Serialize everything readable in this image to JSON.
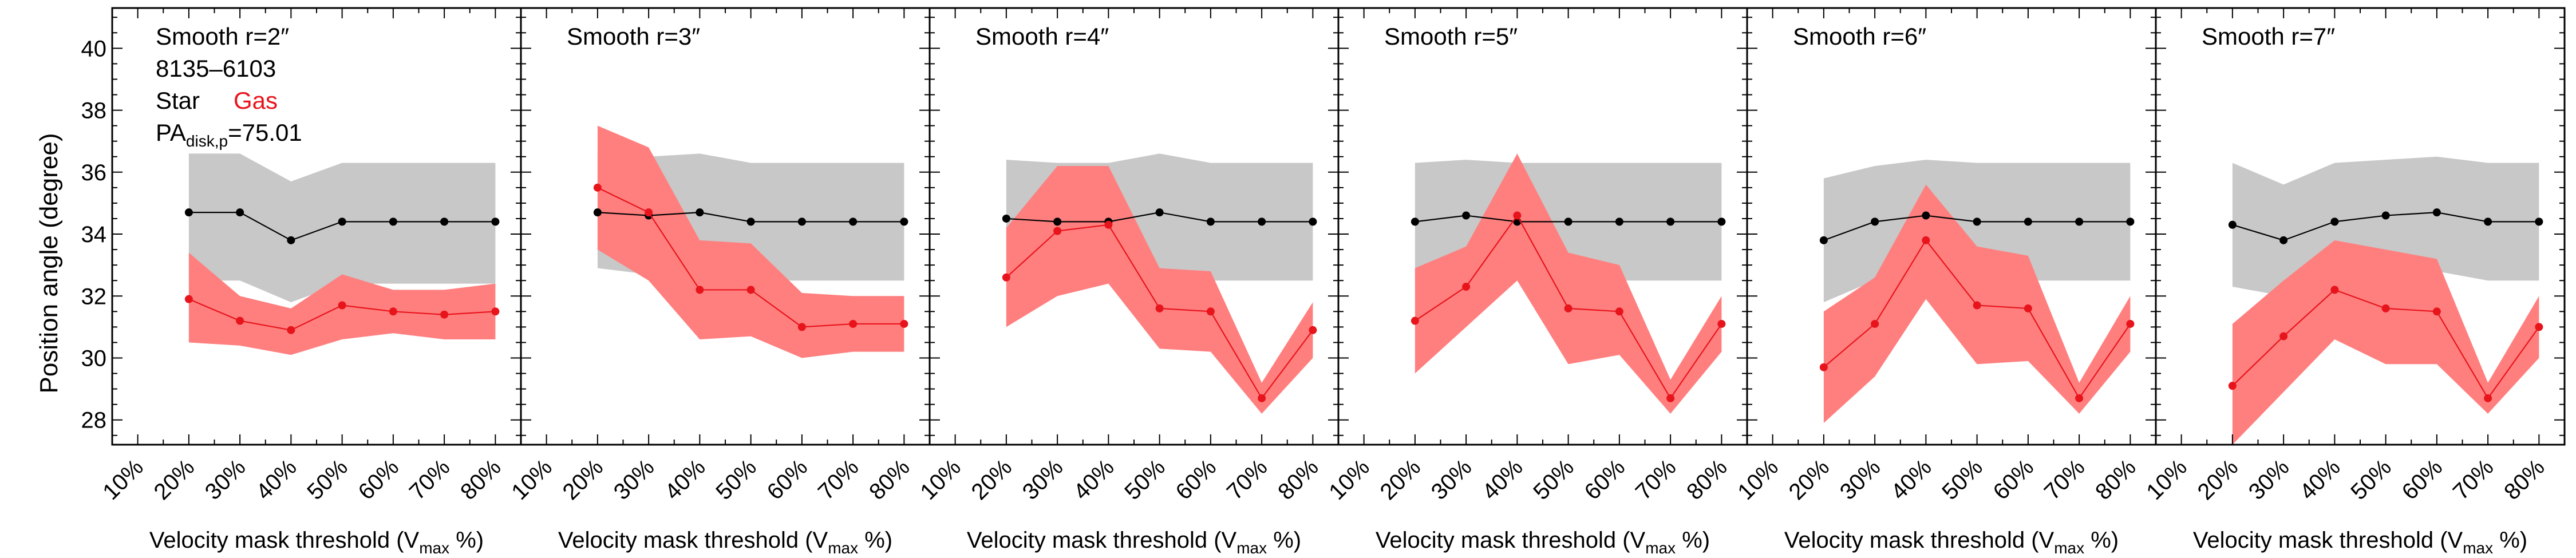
{
  "figure": {
    "ylabel": "Position angle (degree)",
    "xlabel_main": "Velocity mask threshold (V",
    "xlabel_sub": "max",
    "xlabel_end": " %)"
  },
  "info": {
    "galaxy_id": "8135–6103",
    "legend_star": "Star",
    "legend_gas": "Gas",
    "pa_prefix": "PA",
    "pa_sub": "disk,p",
    "pa_value": "=75.01"
  },
  "colors": {
    "star_line": "#000000",
    "star_band": "#c8c8c8",
    "gas_line": "#e8141c",
    "gas_band": "#ff7f7f",
    "gas_text": "#e8141c"
  },
  "chart_data": [
    {
      "type": "line",
      "title": "Smooth r=2″",
      "xlabel": "Velocity mask threshold (Vmax %)",
      "ylabel": "Position angle (degree)",
      "x_ticks": [
        "10%",
        "20%",
        "30%",
        "40%",
        "50%",
        "60%",
        "70%",
        "80%"
      ],
      "x": [
        20,
        30,
        40,
        50,
        60,
        70,
        80
      ],
      "xlim": [
        5,
        85
      ],
      "ylim": [
        27.2,
        41.3
      ],
      "y_ticks": [
        28,
        30,
        32,
        34,
        36,
        38,
        40
      ],
      "series": [
        {
          "name": "Star",
          "values": [
            34.7,
            34.7,
            33.8,
            34.4,
            34.4,
            34.4,
            34.4
          ],
          "upper": [
            36.6,
            36.6,
            35.7,
            36.3,
            36.3,
            36.3,
            36.3
          ],
          "lower": [
            32.5,
            32.5,
            31.8,
            32.4,
            32.4,
            32.4,
            32.4
          ]
        },
        {
          "name": "Gas",
          "values": [
            31.9,
            31.2,
            30.9,
            31.7,
            31.5,
            31.4,
            31.5
          ],
          "upper": [
            33.4,
            32.0,
            31.6,
            32.7,
            32.2,
            32.2,
            32.4
          ],
          "lower": [
            30.5,
            30.4,
            30.1,
            30.6,
            30.8,
            30.6,
            30.6
          ]
        }
      ]
    },
    {
      "type": "line",
      "title": "Smooth r=3″",
      "xlabel": "Velocity mask threshold (Vmax %)",
      "x_ticks": [
        "10%",
        "20%",
        "30%",
        "40%",
        "50%",
        "60%",
        "70%",
        "80%"
      ],
      "x": [
        20,
        30,
        40,
        50,
        60,
        70,
        80
      ],
      "xlim": [
        5,
        85
      ],
      "ylim": [
        27.2,
        41.3
      ],
      "series": [
        {
          "name": "Star",
          "values": [
            34.7,
            34.6,
            34.7,
            34.4,
            34.4,
            34.4,
            34.4
          ],
          "upper": [
            36.5,
            36.5,
            36.6,
            36.3,
            36.3,
            36.3,
            36.3
          ],
          "lower": [
            32.9,
            32.7,
            32.7,
            32.5,
            32.5,
            32.5,
            32.5
          ]
        },
        {
          "name": "Gas",
          "values": [
            35.5,
            34.7,
            32.2,
            32.2,
            31.0,
            31.1,
            31.1
          ],
          "upper": [
            37.5,
            36.8,
            33.8,
            33.7,
            32.1,
            32.0,
            32.0
          ],
          "lower": [
            33.5,
            32.5,
            30.6,
            30.7,
            30.0,
            30.2,
            30.2
          ]
        }
      ]
    },
    {
      "type": "line",
      "title": "Smooth r=4″",
      "xlabel": "Velocity mask threshold (Vmax %)",
      "x_ticks": [
        "10%",
        "20%",
        "30%",
        "40%",
        "50%",
        "60%",
        "70%",
        "80%"
      ],
      "x": [
        20,
        30,
        40,
        50,
        60,
        70,
        80
      ],
      "xlim": [
        5,
        85
      ],
      "ylim": [
        27.2,
        41.3
      ],
      "series": [
        {
          "name": "Star",
          "values": [
            34.5,
            34.4,
            34.4,
            34.7,
            34.4,
            34.4,
            34.4
          ],
          "upper": [
            36.4,
            36.3,
            36.3,
            36.6,
            36.3,
            36.3,
            36.3
          ],
          "lower": [
            32.6,
            32.5,
            32.5,
            32.8,
            32.5,
            32.5,
            32.5
          ]
        },
        {
          "name": "Gas",
          "values": [
            32.6,
            34.1,
            34.3,
            31.6,
            31.5,
            28.7,
            30.9
          ],
          "upper": [
            34.2,
            36.2,
            36.2,
            32.9,
            32.8,
            29.2,
            31.8
          ],
          "lower": [
            31.0,
            32.0,
            32.4,
            30.3,
            30.2,
            28.2,
            30.0
          ]
        }
      ]
    },
    {
      "type": "line",
      "title": "Smooth r=5″",
      "xlabel": "Velocity mask threshold (Vmax %)",
      "x_ticks": [
        "10%",
        "20%",
        "30%",
        "40%",
        "50%",
        "60%",
        "70%",
        "80%"
      ],
      "x": [
        20,
        30,
        40,
        50,
        60,
        70,
        80
      ],
      "xlim": [
        5,
        85
      ],
      "ylim": [
        27.2,
        41.3
      ],
      "series": [
        {
          "name": "Star",
          "values": [
            34.4,
            34.6,
            34.4,
            34.4,
            34.4,
            34.4,
            34.4
          ],
          "upper": [
            36.3,
            36.4,
            36.3,
            36.3,
            36.3,
            36.3,
            36.3
          ],
          "lower": [
            32.5,
            32.7,
            32.5,
            32.5,
            32.5,
            32.5,
            32.5
          ]
        },
        {
          "name": "Gas",
          "values": [
            31.2,
            32.3,
            34.6,
            31.6,
            31.5,
            28.7,
            31.1
          ],
          "upper": [
            32.9,
            33.6,
            36.6,
            33.4,
            33.0,
            29.3,
            32.0
          ],
          "lower": [
            29.5,
            31.0,
            32.5,
            29.8,
            30.1,
            28.2,
            30.2
          ]
        }
      ]
    },
    {
      "type": "line",
      "title": "Smooth r=6″",
      "xlabel": "Velocity mask threshold (Vmax %)",
      "x_ticks": [
        "10%",
        "20%",
        "30%",
        "40%",
        "50%",
        "60%",
        "70%",
        "80%"
      ],
      "x": [
        20,
        30,
        40,
        50,
        60,
        70,
        80
      ],
      "xlim": [
        5,
        85
      ],
      "ylim": [
        27.2,
        41.3
      ],
      "series": [
        {
          "name": "Star",
          "values": [
            33.8,
            34.4,
            34.6,
            34.4,
            34.4,
            34.4,
            34.4
          ],
          "upper": [
            35.8,
            36.2,
            36.4,
            36.3,
            36.3,
            36.3,
            36.3
          ],
          "lower": [
            31.8,
            32.5,
            32.7,
            32.5,
            32.5,
            32.5,
            32.5
          ]
        },
        {
          "name": "Gas",
          "values": [
            29.7,
            31.1,
            33.8,
            31.7,
            31.6,
            28.7,
            31.1
          ],
          "upper": [
            31.5,
            32.6,
            35.6,
            33.6,
            33.3,
            29.2,
            32.0
          ],
          "lower": [
            27.9,
            29.4,
            31.9,
            29.8,
            29.9,
            28.2,
            30.2
          ]
        }
      ]
    },
    {
      "type": "line",
      "title": "Smooth r=7″",
      "xlabel": "Velocity mask threshold (Vmax %)",
      "x_ticks": [
        "10%",
        "20%",
        "30%",
        "40%",
        "50%",
        "60%",
        "70%",
        "80%"
      ],
      "x": [
        20,
        30,
        40,
        50,
        60,
        70,
        80
      ],
      "xlim": [
        5,
        85
      ],
      "ylim": [
        27.2,
        41.3
      ],
      "series": [
        {
          "name": "Star",
          "values": [
            34.3,
            33.8,
            34.4,
            34.6,
            34.7,
            34.4,
            34.4
          ],
          "upper": [
            36.3,
            35.6,
            36.3,
            36.4,
            36.5,
            36.3,
            36.3
          ],
          "lower": [
            32.3,
            32.0,
            32.5,
            32.7,
            32.8,
            32.5,
            32.5
          ]
        },
        {
          "name": "Gas",
          "values": [
            29.1,
            30.7,
            32.2,
            31.6,
            31.5,
            28.7,
            31.0
          ],
          "upper": [
            31.1,
            32.5,
            33.8,
            33.5,
            33.2,
            29.2,
            32.0
          ],
          "lower": [
            27.2,
            28.9,
            30.6,
            29.8,
            29.8,
            28.2,
            30.0
          ]
        }
      ]
    }
  ]
}
